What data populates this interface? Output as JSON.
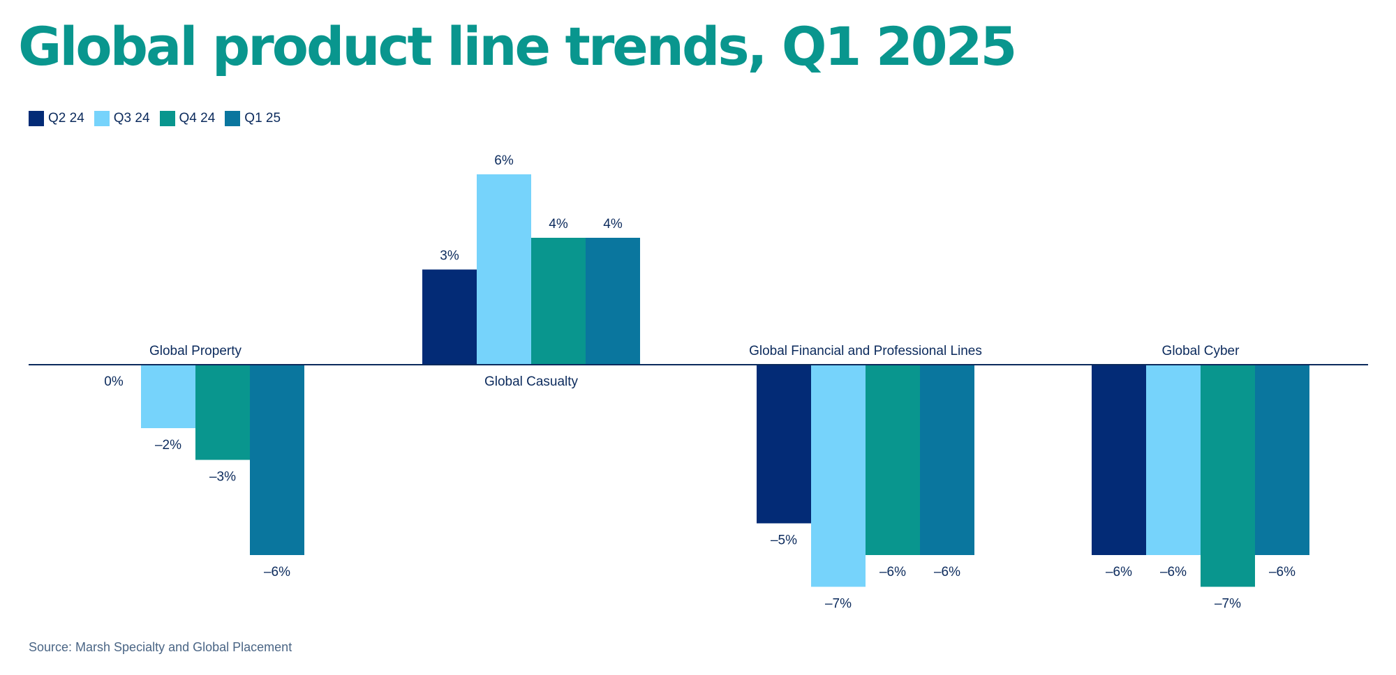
{
  "chart_data": {
    "type": "bar",
    "title": "Global product line trends, Q1 2025",
    "categories": [
      "Global Property",
      "Global Casualty",
      "Global Financial and Professional Lines",
      "Global Cyber"
    ],
    "series": [
      {
        "name": "Q2 24",
        "color": "#032b76",
        "values": [
          0,
          3,
          -5,
          -6
        ]
      },
      {
        "name": "Q3 24",
        "color": "#76d3fb",
        "values": [
          -2,
          6,
          -7,
          -6
        ]
      },
      {
        "name": "Q4 24",
        "color": "#09968e",
        "values": [
          -3,
          4,
          -6,
          -7
        ]
      },
      {
        "name": "Q1 25",
        "color": "#0a769e",
        "values": [
          -6,
          4,
          -6,
          -6
        ]
      }
    ],
    "data_labels": [
      [
        "0%",
        "3%",
        "–5%",
        "–6%"
      ],
      [
        "–2%",
        "6%",
        "–7%",
        "–6%"
      ],
      [
        "–3%",
        "4%",
        "–6%",
        "–7%"
      ],
      [
        "–6%",
        "4%",
        "–6%",
        "–6%"
      ]
    ],
    "xlabel": "",
    "ylabel": "",
    "ylim": [
      -8,
      7
    ],
    "grid": false,
    "legend": "top-left",
    "source": "Source: Marsh Specialty and Global Placement"
  }
}
